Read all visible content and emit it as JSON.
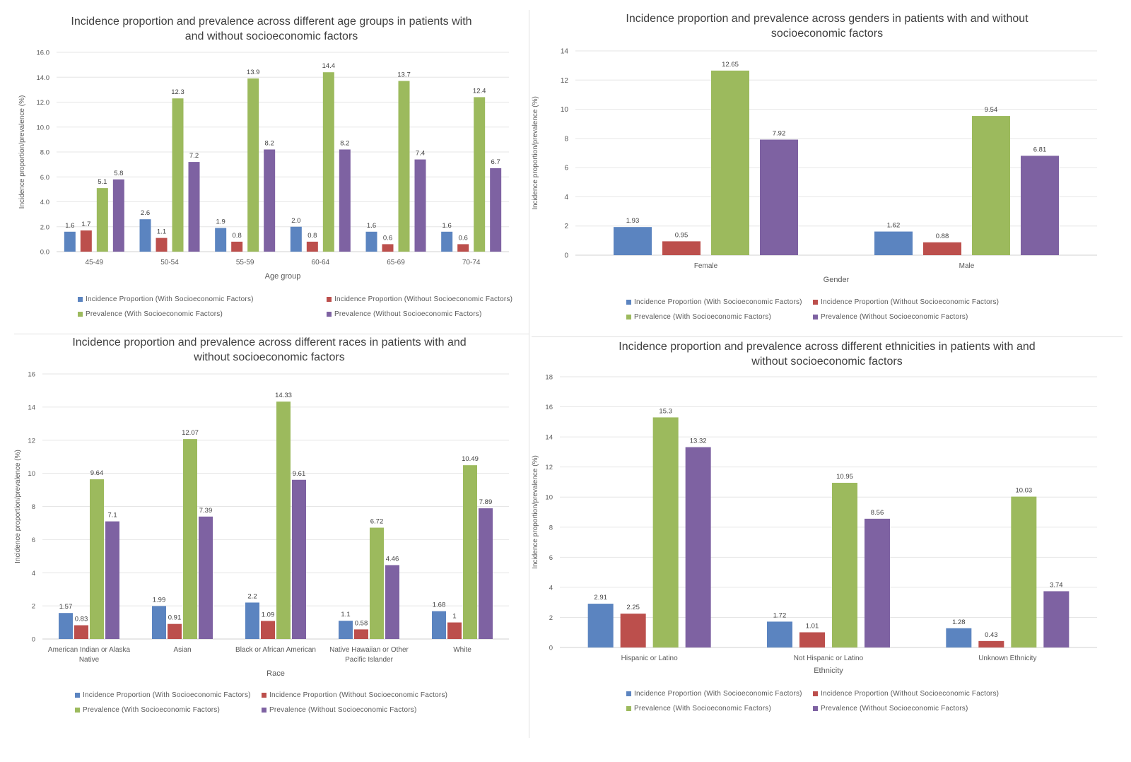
{
  "colors": {
    "incidence_with": "#5b84c0",
    "incidence_without": "#bc4f4c",
    "prevalence_with": "#9cba5d",
    "prevalence_without": "#7e62a2"
  },
  "legend": [
    {
      "key": "incidence_with",
      "label": "Incidence Proportion (With Socioeconomic Factors)"
    },
    {
      "key": "incidence_without",
      "label": "Incidence Proportion (Without Socioeconomic Factors)"
    },
    {
      "key": "prevalence_with",
      "label": "Prevalence (With Socioeconomic Factors)"
    },
    {
      "key": "prevalence_without",
      "label": "Prevalence (Without Socioeconomic Factors)"
    }
  ],
  "chart_data": [
    {
      "id": "age",
      "type": "bar",
      "title_lines": [
        "Incidence proportion and prevalence across different age groups in patients with",
        "and without socioeconomic factors"
      ],
      "xlabel": "Age group",
      "ylabel": "Incidence proportion/prevalence (%)",
      "ylim": [
        0,
        16
      ],
      "yticks": [
        "0.0",
        "2.0",
        "4.0",
        "6.0",
        "8.0",
        "10.0",
        "12.0",
        "14.0",
        "16.0"
      ],
      "categories": [
        [
          "45-49"
        ],
        [
          "50-54"
        ],
        [
          "55-59"
        ],
        [
          "60-64"
        ],
        [
          "65-69"
        ],
        [
          "70-74"
        ]
      ],
      "series": [
        {
          "key": "incidence_with",
          "values": [
            1.6,
            2.6,
            1.9,
            2.0,
            1.6,
            1.6
          ],
          "labels": [
            "1.6",
            "2.6",
            "1.9",
            "2.0",
            "1.6",
            "1.6"
          ]
        },
        {
          "key": "incidence_without",
          "values": [
            1.7,
            1.1,
            0.8,
            0.8,
            0.6,
            0.6
          ],
          "labels": [
            "1.7",
            "1.1",
            "0.8",
            "0.8",
            "0.6",
            "0.6"
          ]
        },
        {
          "key": "prevalence_with",
          "values": [
            5.1,
            12.3,
            13.9,
            14.4,
            13.7,
            12.4
          ],
          "labels": [
            "5.1",
            "12.3",
            "13.9",
            "14.4",
            "13.7",
            "12.4"
          ]
        },
        {
          "key": "prevalence_without",
          "values": [
            5.8,
            7.2,
            8.2,
            8.2,
            7.4,
            6.7
          ],
          "labels": [
            "5.8",
            "7.2",
            "8.2",
            "8.2",
            "7.4",
            "6.7"
          ]
        }
      ]
    },
    {
      "id": "gender",
      "type": "bar",
      "title_lines": [
        "Incidence proportion and prevalence across genders in patients with and without",
        "socioeconomic factors"
      ],
      "xlabel": "Gender",
      "ylabel": "Incidence proportion/prevalence (%)",
      "ylim": [
        0,
        14
      ],
      "yticks": [
        "0",
        "2",
        "4",
        "6",
        "8",
        "10",
        "12",
        "14"
      ],
      "categories": [
        [
          "Female"
        ],
        [
          "Male"
        ]
      ],
      "series": [
        {
          "key": "incidence_with",
          "values": [
            1.93,
            1.62
          ],
          "labels": [
            "1.93",
            "1.62"
          ]
        },
        {
          "key": "incidence_without",
          "values": [
            0.95,
            0.88
          ],
          "labels": [
            "0.95",
            "0.88"
          ]
        },
        {
          "key": "prevalence_with",
          "values": [
            12.65,
            9.54
          ],
          "labels": [
            "12.65",
            "9.54"
          ]
        },
        {
          "key": "prevalence_without",
          "values": [
            7.92,
            6.81
          ],
          "labels": [
            "7.92",
            "6.81"
          ]
        }
      ]
    },
    {
      "id": "race",
      "type": "bar",
      "title_lines": [
        "Incidence proportion and prevalence across different races in patients with and",
        "without socioeconomic factors"
      ],
      "xlabel": "Race",
      "ylabel": "Incidence proportion/prevalence (%)",
      "ylim": [
        0,
        16
      ],
      "yticks": [
        "0",
        "2",
        "4",
        "6",
        "8",
        "10",
        "12",
        "14",
        "16"
      ],
      "categories": [
        [
          "American Indian or Alaska",
          "Native"
        ],
        [
          "Asian"
        ],
        [
          "Black or African American"
        ],
        [
          "Native Hawaiian or Other",
          "Pacific Islander"
        ],
        [
          "White"
        ]
      ],
      "series": [
        {
          "key": "incidence_with",
          "values": [
            1.57,
            1.99,
            2.2,
            1.1,
            1.68
          ],
          "labels": [
            "1.57",
            "1.99",
            "2.2",
            "1.1",
            "1.68"
          ]
        },
        {
          "key": "incidence_without",
          "values": [
            0.83,
            0.91,
            1.09,
            0.58,
            1.0
          ],
          "labels": [
            "0.83",
            "0.91",
            "1.09",
            "0.58",
            "1"
          ]
        },
        {
          "key": "prevalence_with",
          "values": [
            9.64,
            12.07,
            14.33,
            6.72,
            10.49
          ],
          "labels": [
            "9.64",
            "12.07",
            "14.33",
            "6.72",
            "10.49"
          ]
        },
        {
          "key": "prevalence_without",
          "values": [
            7.1,
            7.39,
            9.61,
            4.46,
            7.89
          ],
          "labels": [
            "7.1",
            "7.39",
            "9.61",
            "4.46",
            "7.89"
          ]
        }
      ]
    },
    {
      "id": "ethnicity",
      "type": "bar",
      "title_lines": [
        "Incidence proportion and prevalence across different ethnicities in patients with and",
        "without socioeconomic factors"
      ],
      "xlabel": "Ethnicity",
      "ylabel": "Incidence proportion/prevalence (%)",
      "ylim": [
        0,
        18
      ],
      "yticks": [
        "0",
        "2",
        "4",
        "6",
        "8",
        "10",
        "12",
        "14",
        "16",
        "18"
      ],
      "categories": [
        [
          "Hispanic or Latino"
        ],
        [
          "Not Hispanic or Latino"
        ],
        [
          "Unknown Ethnicity"
        ]
      ],
      "series": [
        {
          "key": "incidence_with",
          "values": [
            2.91,
            1.72,
            1.28
          ],
          "labels": [
            "2.91",
            "1.72",
            "1.28"
          ]
        },
        {
          "key": "incidence_without",
          "values": [
            2.25,
            1.01,
            0.43
          ],
          "labels": [
            "2.25",
            "1.01",
            "0.43"
          ]
        },
        {
          "key": "prevalence_with",
          "values": [
            15.3,
            10.95,
            10.03
          ],
          "labels": [
            "15.3",
            "10.95",
            "10.03"
          ]
        },
        {
          "key": "prevalence_without",
          "values": [
            13.32,
            8.56,
            3.74
          ],
          "labels": [
            "13.32",
            "8.56",
            "3.74"
          ]
        }
      ]
    }
  ]
}
